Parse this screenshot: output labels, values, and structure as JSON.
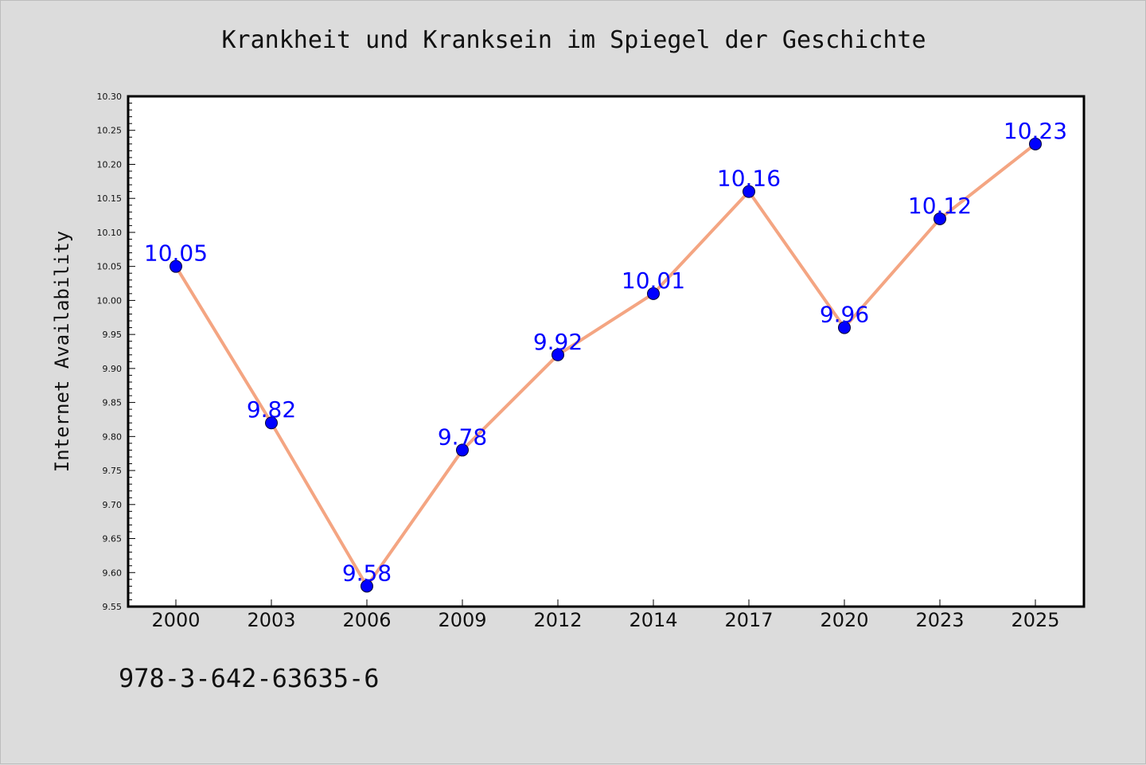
{
  "chart_data": {
    "type": "line",
    "title": "Krankheit und Kranksein im Spiegel der Geschichte",
    "xlabel": "",
    "ylabel": "Internet Availability",
    "categories": [
      "2000",
      "2003",
      "2006",
      "2009",
      "2012",
      "2014",
      "2017",
      "2020",
      "2023",
      "2025"
    ],
    "series": [
      {
        "values": [
          10.05,
          9.82,
          9.58,
          9.78,
          9.92,
          10.01,
          10.16,
          9.96,
          10.12,
          10.23
        ],
        "data_labels": [
          "10.05",
          "9.82",
          "9.58",
          "9.78",
          "9.92",
          "10.01",
          "10.16",
          "9.96",
          "10.12",
          "10.23"
        ],
        "line_color": "#f4a582",
        "marker_color": "#0000ff"
      }
    ],
    "ylim": [
      9.55,
      10.3
    ],
    "yticks": [
      "9.55",
      "9.60",
      "9.65",
      "9.70",
      "9.75",
      "9.80",
      "9.85",
      "9.90",
      "9.95",
      "10.00",
      "10.05",
      "10.10",
      "10.15",
      "10.20",
      "10.25",
      "10.30"
    ],
    "grid": false,
    "legend": "none",
    "label_color": "#0000ff"
  },
  "footer": {
    "isbn": "978-3-642-63635-6"
  }
}
